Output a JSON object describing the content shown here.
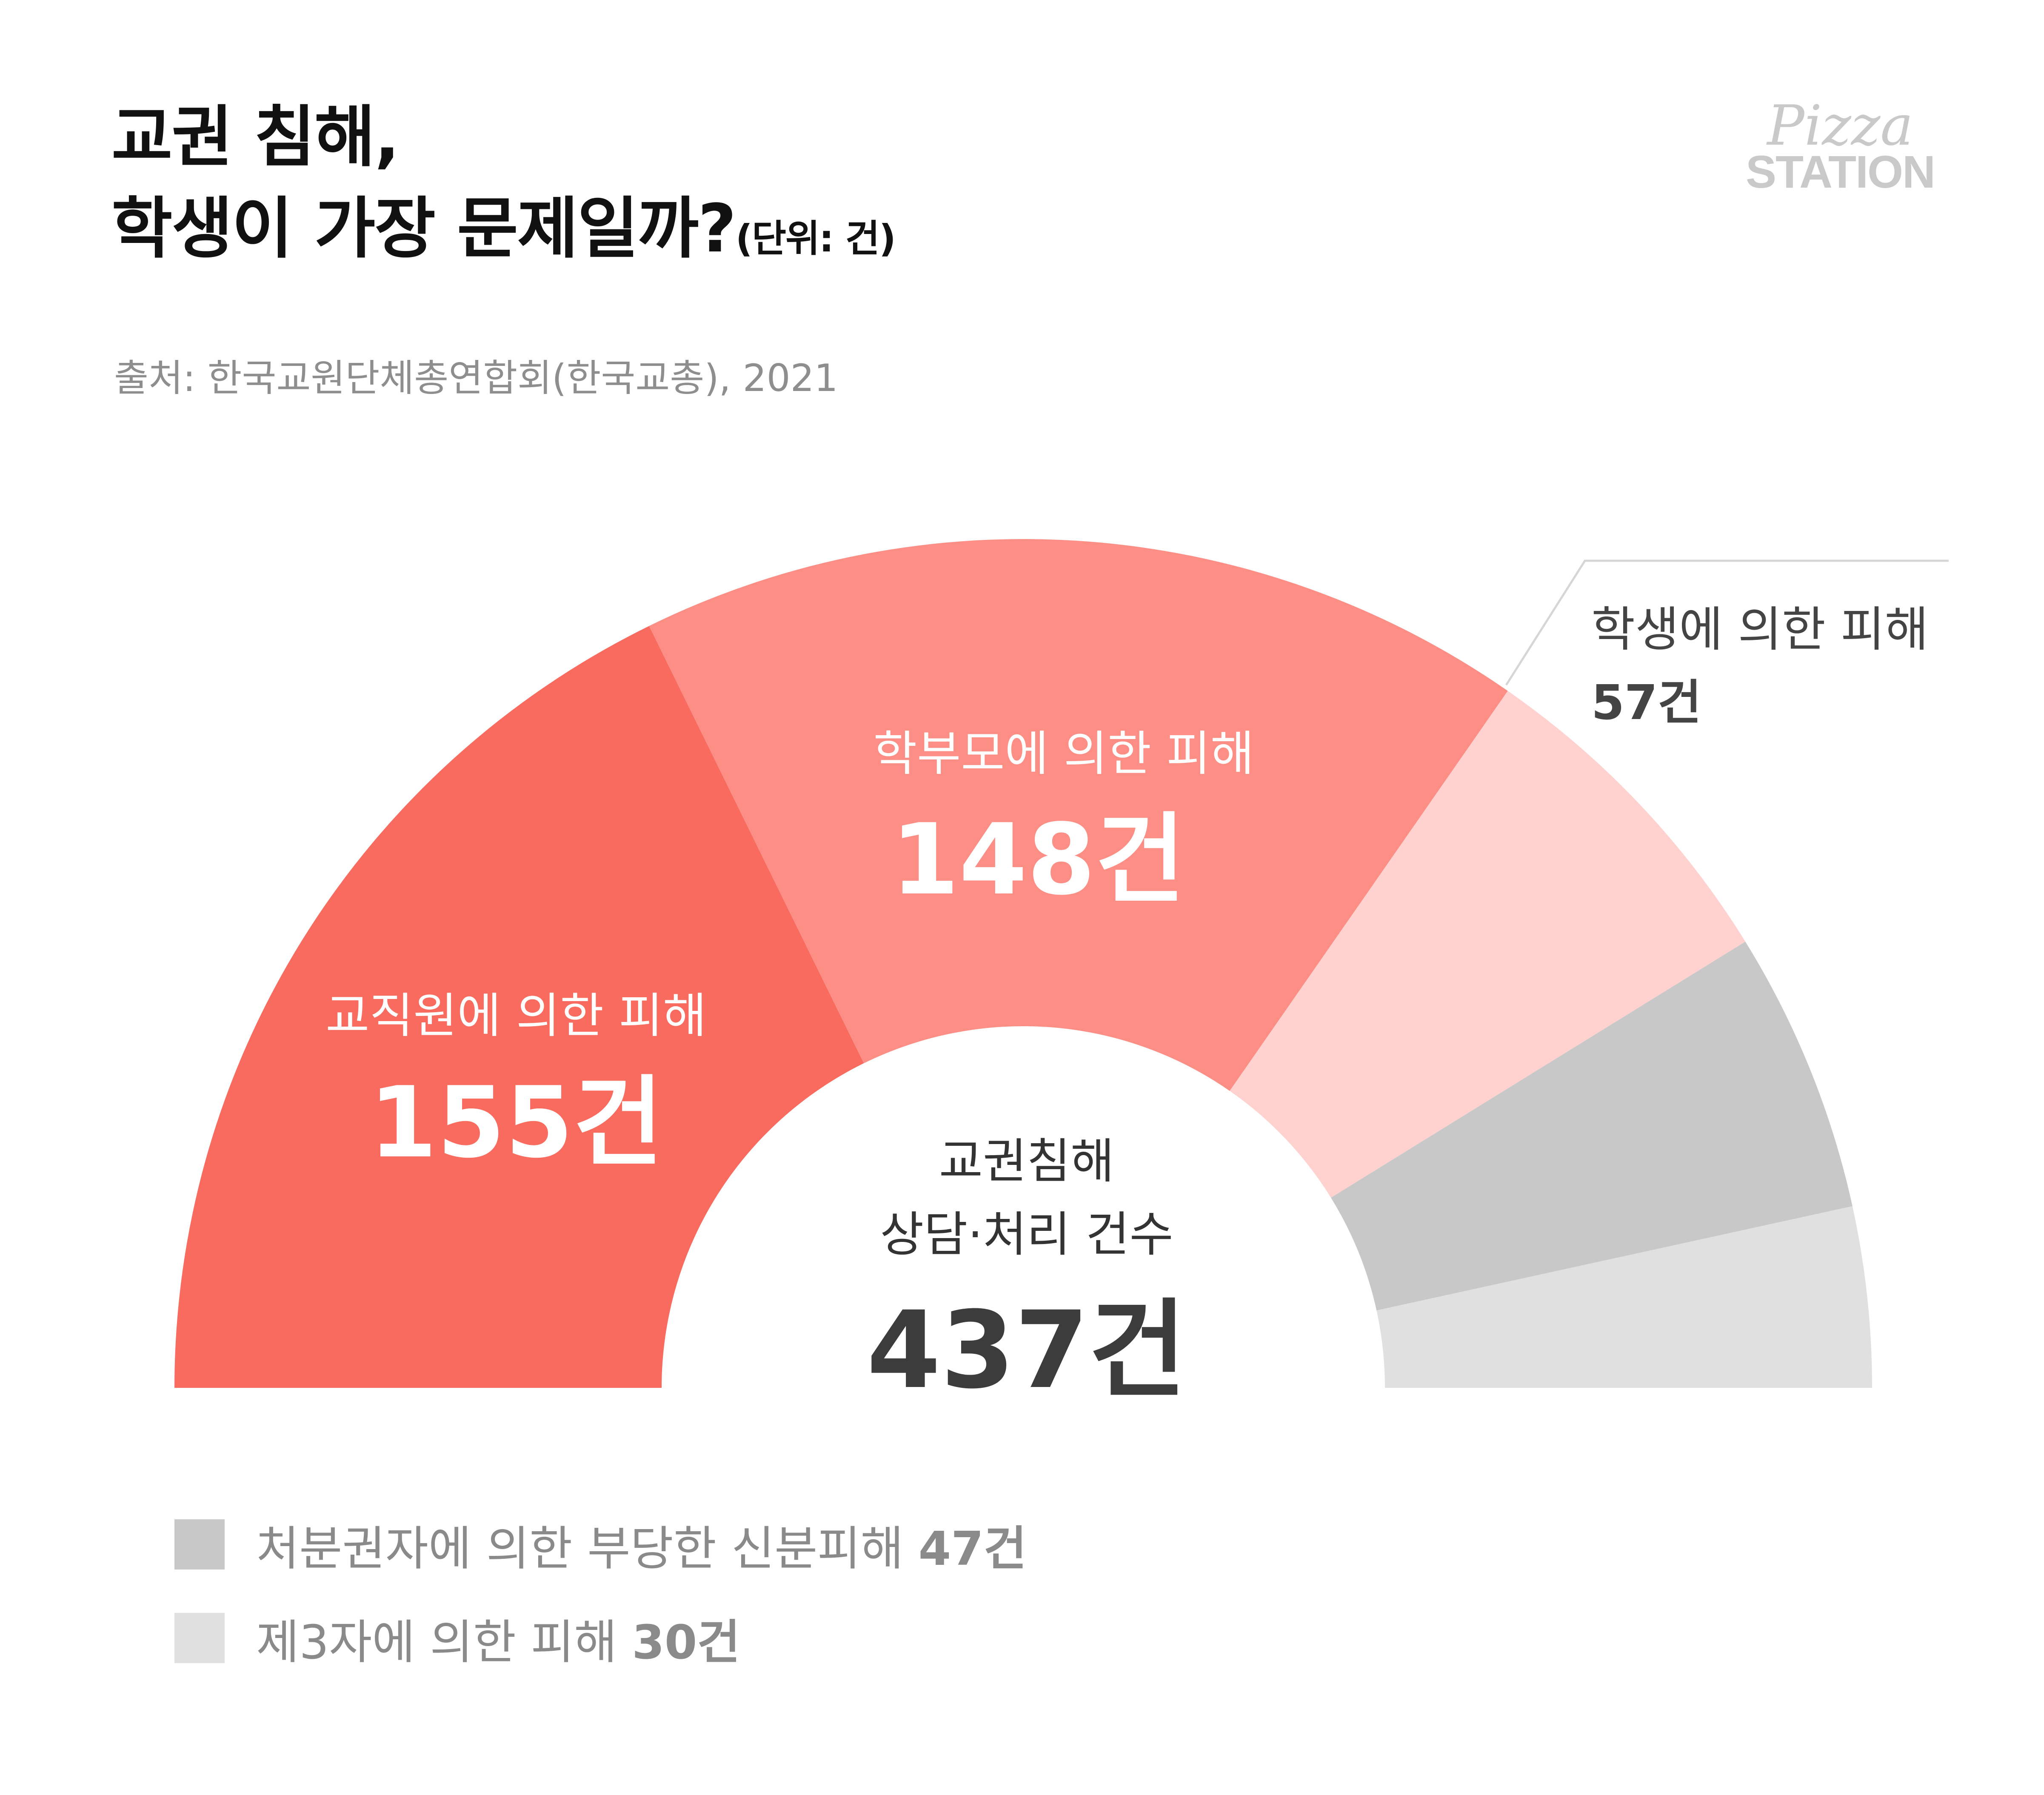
{
  "title": {
    "line1": "교권 침해,",
    "line2": "학생이 가장 문제일까?",
    "unit": "(단위: 건)"
  },
  "source": "출처: 한국교원단체총연합회(한국교총), 2021",
  "logo": {
    "line1": "Pizza",
    "line2": "STATION"
  },
  "chart_data": {
    "type": "pie",
    "style": "half-donut",
    "center_label": {
      "line1": "교권침해",
      "line2": "상담·처리 건수",
      "total": "437건"
    },
    "total": 437,
    "unit": "건",
    "slices": [
      {
        "label": "교직원에 의한 피해",
        "value": 155,
        "display": "155건",
        "color": "#f96a5f"
      },
      {
        "label": "학부모에 의한 피해",
        "value": 148,
        "display": "148건",
        "color": "#fc8e85"
      },
      {
        "label": "학생에 의한 피해",
        "value": 57,
        "display": "57건",
        "color": "#ffd2cf"
      },
      {
        "label": "처분권자에 의한 부당한 신분피해",
        "value": 47,
        "display": "47건",
        "color": "#c8c8c8"
      },
      {
        "label": "제3자에 의한 피해",
        "value": 30,
        "display": "30건",
        "color": "#e0e0e0"
      }
    ]
  }
}
